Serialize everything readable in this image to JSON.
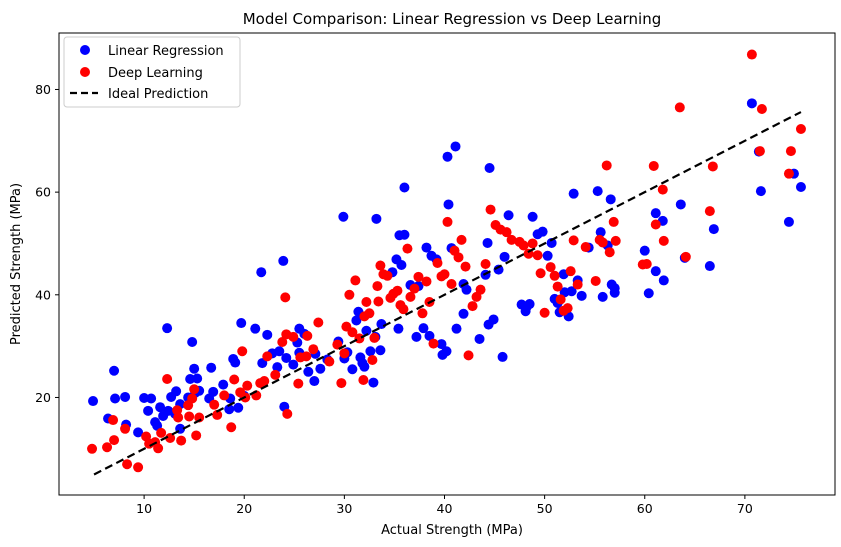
{
  "chart_data": {
    "type": "scatter",
    "title": "Model Comparison: Linear Regression vs Deep Learning",
    "xlabel": "Actual Strength (MPa)",
    "ylabel": "Predicted Strength (MPa)",
    "xlim": [
      1.5,
      79
    ],
    "ylim": [
      1,
      91
    ],
    "xticks": [
      10,
      20,
      30,
      40,
      50,
      60,
      70
    ],
    "yticks": [
      20,
      40,
      60,
      80
    ],
    "grid": false,
    "legend": {
      "position": "top-left",
      "entries": [
        "Linear Regression",
        "Deep Learning",
        "Ideal Prediction"
      ]
    },
    "series": [
      {
        "name": "Linear Regression",
        "type": "scatter",
        "color": "#0000ff",
        "points": [
          [
            4.9,
            19.3
          ],
          [
            6.4,
            15.9
          ],
          [
            7.0,
            25.2
          ],
          [
            7.1,
            19.8
          ],
          [
            8.1,
            20.1
          ],
          [
            8.2,
            14.7
          ],
          [
            9.4,
            13.2
          ],
          [
            10.0,
            19.9
          ],
          [
            10.4,
            17.4
          ],
          [
            10.7,
            19.8
          ],
          [
            11.1,
            15.2
          ],
          [
            11.3,
            14.5
          ],
          [
            11.6,
            18.1
          ],
          [
            11.9,
            16.4
          ],
          [
            12.3,
            33.5
          ],
          [
            12.4,
            17.4
          ],
          [
            12.7,
            20.1
          ],
          [
            13.1,
            16.8
          ],
          [
            13.2,
            21.2
          ],
          [
            13.6,
            13.9
          ],
          [
            13.6,
            18.7
          ],
          [
            14.4,
            20.0
          ],
          [
            14.6,
            23.6
          ],
          [
            14.8,
            30.8
          ],
          [
            15.0,
            25.6
          ],
          [
            15.1,
            20.9
          ],
          [
            15.3,
            23.7
          ],
          [
            15.5,
            21.3
          ],
          [
            16.5,
            19.8
          ],
          [
            16.7,
            25.8
          ],
          [
            16.9,
            21.1
          ],
          [
            17.9,
            22.5
          ],
          [
            18.5,
            17.7
          ],
          [
            18.6,
            19.8
          ],
          [
            18.9,
            27.5
          ],
          [
            19.1,
            26.8
          ],
          [
            19.4,
            18.0
          ],
          [
            19.7,
            34.5
          ],
          [
            20.0,
            20.3
          ],
          [
            21.1,
            33.4
          ],
          [
            21.7,
            44.4
          ],
          [
            21.8,
            26.7
          ],
          [
            22.3,
            32.2
          ],
          [
            22.8,
            28.6
          ],
          [
            23.3,
            25.9
          ],
          [
            23.5,
            29.0
          ],
          [
            23.9,
            46.6
          ],
          [
            24.0,
            18.2
          ],
          [
            24.2,
            27.7
          ],
          [
            24.9,
            26.4
          ],
          [
            25.3,
            30.7
          ],
          [
            25.5,
            28.7
          ],
          [
            25.5,
            33.4
          ],
          [
            26.0,
            32.4
          ],
          [
            26.4,
            25.0
          ],
          [
            27.0,
            23.2
          ],
          [
            27.1,
            28.5
          ],
          [
            27.6,
            25.6
          ],
          [
            28.3,
            27.4
          ],
          [
            29.4,
            30.9
          ],
          [
            29.9,
            55.2
          ],
          [
            30.0,
            27.6
          ],
          [
            30.3,
            28.8
          ],
          [
            30.8,
            25.5
          ],
          [
            31.2,
            35.0
          ],
          [
            31.4,
            36.7
          ],
          [
            31.6,
            27.8
          ],
          [
            31.8,
            26.7
          ],
          [
            32.0,
            26.0
          ],
          [
            32.2,
            33.0
          ],
          [
            32.6,
            29.0
          ],
          [
            32.9,
            22.9
          ],
          [
            33.1,
            31.8
          ],
          [
            33.2,
            54.8
          ],
          [
            33.6,
            29.2
          ],
          [
            33.7,
            34.3
          ],
          [
            34.8,
            44.4
          ],
          [
            35.2,
            46.9
          ],
          [
            35.4,
            33.4
          ],
          [
            35.5,
            51.6
          ],
          [
            35.7,
            45.8
          ],
          [
            36.0,
            51.7
          ],
          [
            36.0,
            60.9
          ],
          [
            36.6,
            41.9
          ],
          [
            37.2,
            31.8
          ],
          [
            37.4,
            41.7
          ],
          [
            37.9,
            33.5
          ],
          [
            38.2,
            49.2
          ],
          [
            38.5,
            32.0
          ],
          [
            38.7,
            47.6
          ],
          [
            39.2,
            46.9
          ],
          [
            39.7,
            30.4
          ],
          [
            39.8,
            28.3
          ],
          [
            40.2,
            29.0
          ],
          [
            40.3,
            66.9
          ],
          [
            40.4,
            57.6
          ],
          [
            40.7,
            49.1
          ],
          [
            41.1,
            68.9
          ],
          [
            41.2,
            33.4
          ],
          [
            41.9,
            36.3
          ],
          [
            41.9,
            42.1
          ],
          [
            42.2,
            41.0
          ],
          [
            43.5,
            31.4
          ],
          [
            44.1,
            43.9
          ],
          [
            44.3,
            50.1
          ],
          [
            44.5,
            64.7
          ],
          [
            44.4,
            34.2
          ],
          [
            44.9,
            35.2
          ],
          [
            45.4,
            44.9
          ],
          [
            45.8,
            27.9
          ],
          [
            46.0,
            47.4
          ],
          [
            46.4,
            55.5
          ],
          [
            47.7,
            38.1
          ],
          [
            48.1,
            36.8
          ],
          [
            48.2,
            37.6
          ],
          [
            48.5,
            38.2
          ],
          [
            48.8,
            55.2
          ],
          [
            49.3,
            51.8
          ],
          [
            49.8,
            52.3
          ],
          [
            50.3,
            47.6
          ],
          [
            50.7,
            50.1
          ],
          [
            51.0,
            39.2
          ],
          [
            51.3,
            38.4
          ],
          [
            51.5,
            36.6
          ],
          [
            51.9,
            44.0
          ],
          [
            52.0,
            40.5
          ],
          [
            52.4,
            35.8
          ],
          [
            52.7,
            40.7
          ],
          [
            52.9,
            59.7
          ],
          [
            53.3,
            42.8
          ],
          [
            53.7,
            39.8
          ],
          [
            54.4,
            49.2
          ],
          [
            55.3,
            60.2
          ],
          [
            55.6,
            52.2
          ],
          [
            55.8,
            39.6
          ],
          [
            56.3,
            49.6
          ],
          [
            56.6,
            58.6
          ],
          [
            56.7,
            42.0
          ],
          [
            57.0,
            40.4
          ],
          [
            57.0,
            41.3
          ],
          [
            60.0,
            48.6
          ],
          [
            60.4,
            40.3
          ],
          [
            61.1,
            55.9
          ],
          [
            61.1,
            44.6
          ],
          [
            61.8,
            54.4
          ],
          [
            61.9,
            42.8
          ],
          [
            63.6,
            57.6
          ],
          [
            64.0,
            47.2
          ],
          [
            66.5,
            45.6
          ],
          [
            66.9,
            52.8
          ],
          [
            70.7,
            77.3
          ],
          [
            71.4,
            67.9
          ],
          [
            71.6,
            60.2
          ],
          [
            74.4,
            54.2
          ],
          [
            74.9,
            63.6
          ],
          [
            75.6,
            61.0
          ]
        ]
      },
      {
        "name": "Deep Learning",
        "type": "scatter",
        "color": "#ff0000",
        "points": [
          [
            4.8,
            10.0
          ],
          [
            6.3,
            10.3
          ],
          [
            6.9,
            15.6
          ],
          [
            7.0,
            11.7
          ],
          [
            8.1,
            13.9
          ],
          [
            8.3,
            7.0
          ],
          [
            9.4,
            6.4
          ],
          [
            10.2,
            12.4
          ],
          [
            10.5,
            11.0
          ],
          [
            11.1,
            11.3
          ],
          [
            11.4,
            10.1
          ],
          [
            11.7,
            13.1
          ],
          [
            12.3,
            23.6
          ],
          [
            12.6,
            12.1
          ],
          [
            13.3,
            17.5
          ],
          [
            13.4,
            16.1
          ],
          [
            13.7,
            11.6
          ],
          [
            14.4,
            18.5
          ],
          [
            14.5,
            16.3
          ],
          [
            14.8,
            19.8
          ],
          [
            15.0,
            21.6
          ],
          [
            15.2,
            12.6
          ],
          [
            15.5,
            16.1
          ],
          [
            17.0,
            18.6
          ],
          [
            17.3,
            16.6
          ],
          [
            18.0,
            20.4
          ],
          [
            18.7,
            14.2
          ],
          [
            19.0,
            23.5
          ],
          [
            19.6,
            21.0
          ],
          [
            19.8,
            29.0
          ],
          [
            20.1,
            20.0
          ],
          [
            20.3,
            22.3
          ],
          [
            21.2,
            20.4
          ],
          [
            21.6,
            22.8
          ],
          [
            22.0,
            23.2
          ],
          [
            22.3,
            28.0
          ],
          [
            23.1,
            24.4
          ],
          [
            23.8,
            30.8
          ],
          [
            24.1,
            39.5
          ],
          [
            24.2,
            32.3
          ],
          [
            24.3,
            16.8
          ],
          [
            24.9,
            31.8
          ],
          [
            25.4,
            22.7
          ],
          [
            25.6,
            27.8
          ],
          [
            26.2,
            28.0
          ],
          [
            26.3,
            32.0
          ],
          [
            26.9,
            29.4
          ],
          [
            27.4,
            34.6
          ],
          [
            28.5,
            27.0
          ],
          [
            29.3,
            30.3
          ],
          [
            29.7,
            22.8
          ],
          [
            30.0,
            28.6
          ],
          [
            30.2,
            33.8
          ],
          [
            30.5,
            40.0
          ],
          [
            30.8,
            32.7
          ],
          [
            31.1,
            42.8
          ],
          [
            31.5,
            31.5
          ],
          [
            31.9,
            23.4
          ],
          [
            32.0,
            35.8
          ],
          [
            32.2,
            38.6
          ],
          [
            32.5,
            36.4
          ],
          [
            32.8,
            27.3
          ],
          [
            33.0,
            31.6
          ],
          [
            33.3,
            41.7
          ],
          [
            33.4,
            38.7
          ],
          [
            33.6,
            45.7
          ],
          [
            33.9,
            44.0
          ],
          [
            34.3,
            43.7
          ],
          [
            34.6,
            39.4
          ],
          [
            34.9,
            40.2
          ],
          [
            35.3,
            40.8
          ],
          [
            35.6,
            38.0
          ],
          [
            35.9,
            37.2
          ],
          [
            36.3,
            49.0
          ],
          [
            36.6,
            39.6
          ],
          [
            37.0,
            41.2
          ],
          [
            37.4,
            43.5
          ],
          [
            37.8,
            36.4
          ],
          [
            38.2,
            42.6
          ],
          [
            38.5,
            38.6
          ],
          [
            38.9,
            30.5
          ],
          [
            39.3,
            46.2
          ],
          [
            39.7,
            43.6
          ],
          [
            40.0,
            44.0
          ],
          [
            40.3,
            54.2
          ],
          [
            40.7,
            42.1
          ],
          [
            41.0,
            48.6
          ],
          [
            41.4,
            47.3
          ],
          [
            41.7,
            50.7
          ],
          [
            42.1,
            45.5
          ],
          [
            42.4,
            28.2
          ],
          [
            42.8,
            37.8
          ],
          [
            43.2,
            39.6
          ],
          [
            43.6,
            41.0
          ],
          [
            44.1,
            46.0
          ],
          [
            44.6,
            56.6
          ],
          [
            45.1,
            53.6
          ],
          [
            45.6,
            52.7
          ],
          [
            46.2,
            52.2
          ],
          [
            46.7,
            50.7
          ],
          [
            47.5,
            50.3
          ],
          [
            47.9,
            49.6
          ],
          [
            48.4,
            48.0
          ],
          [
            48.8,
            50.0
          ],
          [
            49.3,
            47.7
          ],
          [
            49.6,
            44.2
          ],
          [
            50.0,
            36.5
          ],
          [
            50.6,
            45.4
          ],
          [
            51.0,
            43.7
          ],
          [
            51.3,
            41.6
          ],
          [
            51.6,
            39.1
          ],
          [
            51.9,
            36.9
          ],
          [
            52.3,
            37.4
          ],
          [
            52.6,
            44.6
          ],
          [
            52.9,
            50.6
          ],
          [
            53.3,
            42.0
          ],
          [
            54.1,
            49.3
          ],
          [
            55.1,
            42.7
          ],
          [
            55.5,
            50.7
          ],
          [
            55.8,
            50.2
          ],
          [
            56.2,
            65.2
          ],
          [
            56.5,
            48.3
          ],
          [
            56.9,
            54.2
          ],
          [
            57.1,
            50.5
          ],
          [
            59.8,
            45.9
          ],
          [
            60.2,
            46.0
          ],
          [
            60.9,
            65.1
          ],
          [
            61.1,
            53.7
          ],
          [
            61.8,
            60.5
          ],
          [
            61.9,
            50.5
          ],
          [
            63.5,
            76.5
          ],
          [
            64.1,
            47.4
          ],
          [
            66.5,
            56.3
          ],
          [
            66.8,
            65.0
          ],
          [
            70.7,
            86.8
          ],
          [
            71.5,
            68.0
          ],
          [
            71.7,
            76.2
          ],
          [
            74.4,
            63.6
          ],
          [
            74.6,
            68.0
          ],
          [
            75.6,
            72.3
          ]
        ]
      },
      {
        "name": "Ideal Prediction",
        "type": "line",
        "color": "#000000",
        "dash": "dashed",
        "points": [
          [
            5,
            5
          ],
          [
            75.6,
            75.6
          ]
        ]
      }
    ]
  }
}
